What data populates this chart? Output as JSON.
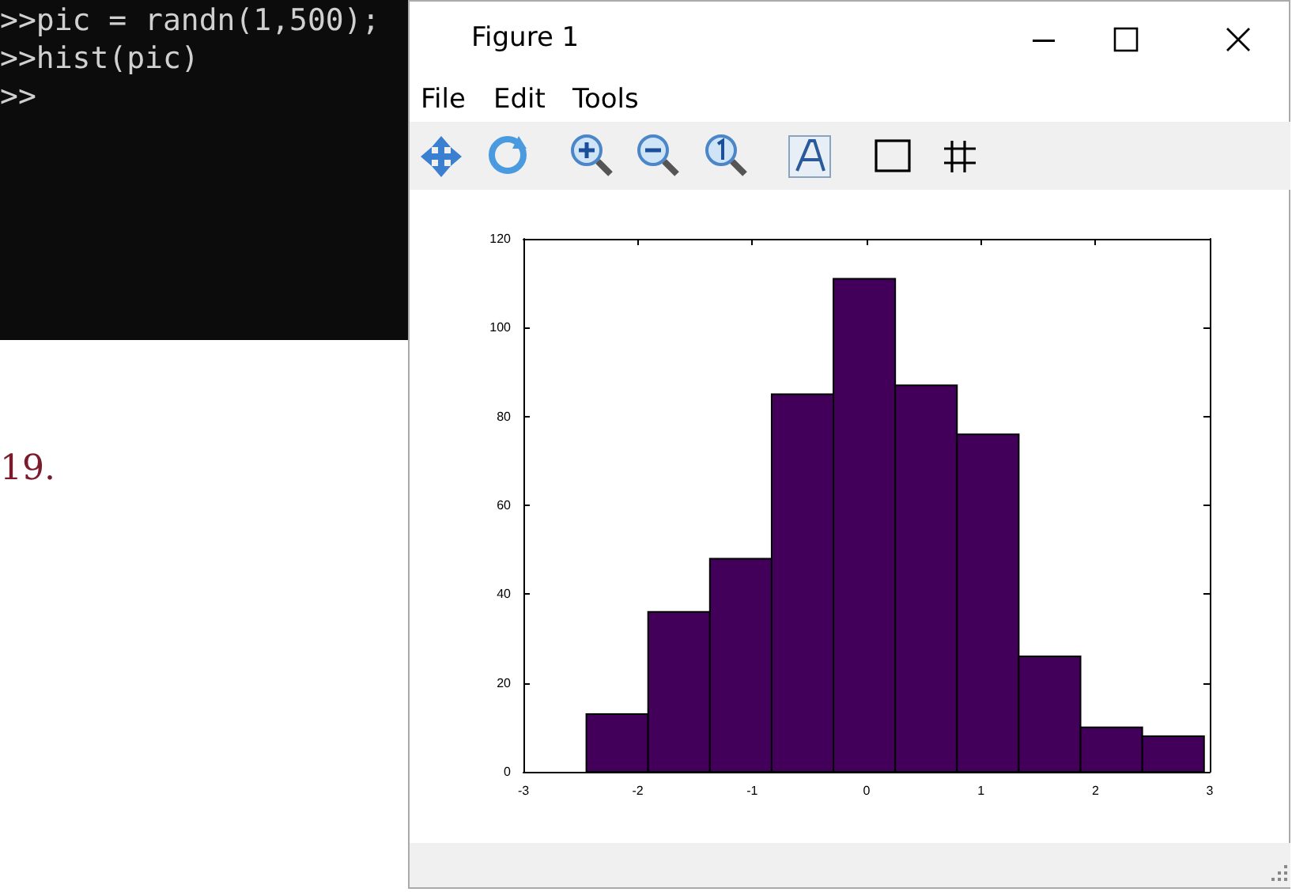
{
  "chart_data": {
    "type": "histogram",
    "bins": [
      -2.45,
      -1.91,
      -1.37,
      -0.83,
      -0.29,
      0.25,
      0.79,
      1.33,
      1.87,
      2.41,
      2.95
    ],
    "values": [
      13,
      36,
      48,
      85,
      111,
      87,
      76,
      26,
      10,
      8
    ],
    "color": "#42005a",
    "xlim": [
      -3,
      3
    ],
    "xticks": [
      -3,
      -2,
      -1,
      0,
      1,
      2,
      3
    ],
    "ylim": [
      0,
      120
    ],
    "yticks": [
      0,
      20,
      40,
      60,
      80,
      100,
      120
    ],
    "grid": false,
    "annotations": [
      ">>pic = randn(1,500);",
      ">>hist(pic)",
      ">>",
      "Figure 1",
      "File",
      "Edit",
      "Tools",
      "19."
    ]
  }
}
